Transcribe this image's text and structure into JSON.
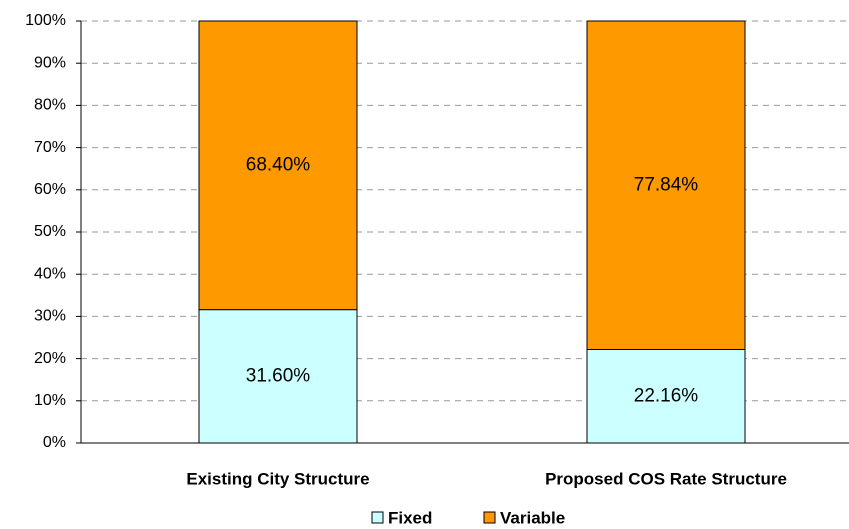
{
  "chart_data": {
    "type": "stacked_bar",
    "categories": [
      "Existing City Structure",
      "Proposed COS Rate Structure"
    ],
    "series": [
      {
        "name": "Fixed",
        "color": "#ccffff",
        "values": [
          31.6,
          22.16
        ],
        "value_labels": [
          "31.60%",
          "22.16%"
        ]
      },
      {
        "name": "Variable",
        "color": "#ff9900",
        "values": [
          68.4,
          77.84
        ],
        "value_labels": [
          "68.40%",
          "77.84%"
        ]
      }
    ],
    "ylim": [
      0,
      100
    ],
    "yticks": [
      {
        "value": 0,
        "label": "0%"
      },
      {
        "value": 10,
        "label": "10%"
      },
      {
        "value": 20,
        "label": "20%"
      },
      {
        "value": 30,
        "label": "30%"
      },
      {
        "value": 40,
        "label": "40%"
      },
      {
        "value": 50,
        "label": "50%"
      },
      {
        "value": 60,
        "label": "60%"
      },
      {
        "value": 70,
        "label": "70%"
      },
      {
        "value": 80,
        "label": "80%"
      },
      {
        "value": 90,
        "label": "90%"
      },
      {
        "value": 100,
        "label": "100%"
      }
    ],
    "grid": true,
    "legend": "bottom"
  }
}
